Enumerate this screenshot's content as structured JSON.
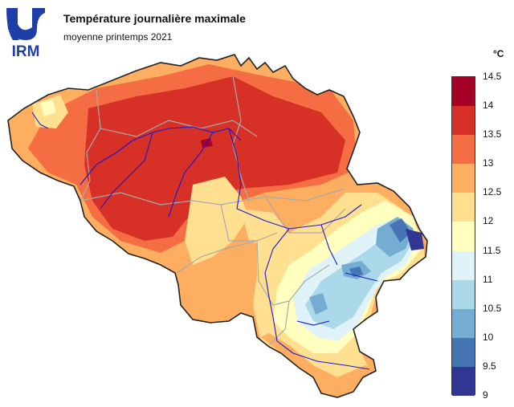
{
  "header": {
    "logo_text": "IRM",
    "title": "Température journalière maximale",
    "subtitle": "moyenne printemps 2021"
  },
  "legend": {
    "unit": "°C",
    "labels": [
      "14.5",
      "14",
      "13.5",
      "13",
      "12.5",
      "12",
      "11.5",
      "11",
      "10.5",
      "10",
      "9.5",
      "9"
    ],
    "colors": [
      "#a50026",
      "#d73027",
      "#f46d43",
      "#fdae61",
      "#fee090",
      "#ffffbf",
      "#e0f3f8",
      "#abd9e9",
      "#74add1",
      "#4575b4",
      "#313695"
    ]
  },
  "map": {
    "border_color": "#222222",
    "river_color": "#1a1acc",
    "province_color": "#aaaaaa"
  }
}
